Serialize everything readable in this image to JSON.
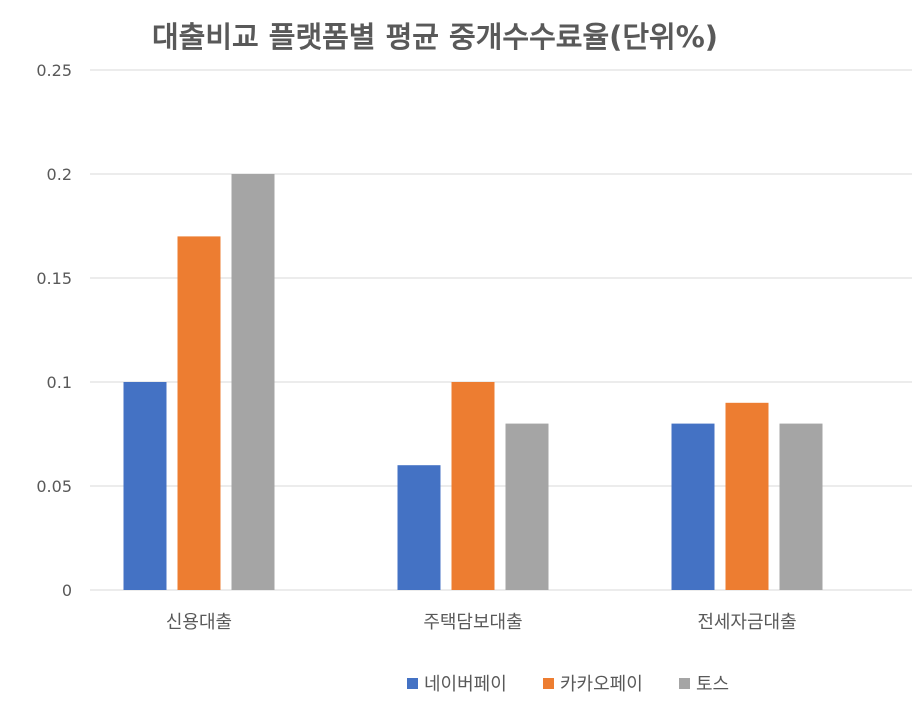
{
  "chart_data": {
    "type": "bar",
    "title": "대출비교 플랫폼별 평균 중개수수료율(단위%)",
    "categories": [
      "신용대출",
      "주택담보대출",
      "전세자금대출"
    ],
    "series": [
      {
        "name": "네이버페이",
        "color": "#4472C4",
        "values": [
          0.1,
          0.06,
          0.08
        ]
      },
      {
        "name": "카카오페이",
        "color": "#ED7D31",
        "values": [
          0.17,
          0.1,
          0.09
        ]
      },
      {
        "name": "토스",
        "color": "#A5A5A5",
        "values": [
          0.2,
          0.08,
          0.08
        ]
      }
    ],
    "ylim": [
      0,
      0.25
    ],
    "yticks": [
      "0",
      "0.05",
      "0.1",
      "0.15",
      "0.2",
      "0.25"
    ],
    "grid": true,
    "legend_position": "bottom"
  }
}
